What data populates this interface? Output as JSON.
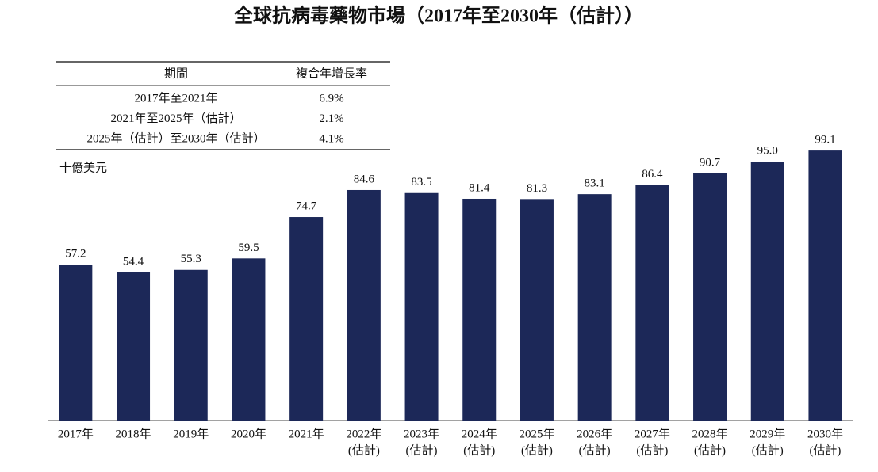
{
  "chart_data": {
    "type": "bar",
    "title": "全球抗病毒藥物市場（2017年至2030年（估計））",
    "y_label": "十億美元",
    "categories": [
      "2017年",
      "2018年",
      "2019年",
      "2020年",
      "2021年",
      "2022年",
      "2023年",
      "2024年",
      "2025年",
      "2026年",
      "2027年",
      "2028年",
      "2029年",
      "2030年"
    ],
    "x_sublabels": [
      null,
      null,
      null,
      null,
      null,
      "(估計)",
      "(估計)",
      "(估計)",
      "(估計)",
      "(估計)",
      "(估計)",
      "(估計)",
      "(估計)",
      "(估計)"
    ],
    "values": [
      57.2,
      54.4,
      55.3,
      59.5,
      74.7,
      84.6,
      83.5,
      81.4,
      81.3,
      83.1,
      86.4,
      90.7,
      95.0,
      99.1
    ],
    "value_labels": [
      "57.2",
      "54.4",
      "55.3",
      "59.5",
      "74.7",
      "84.6",
      "83.5",
      "81.4",
      "81.3",
      "83.1",
      "86.4",
      "90.7",
      "95.0",
      "99.1"
    ],
    "color": "#1c2858",
    "ylim": [
      0,
      100
    ]
  },
  "table": {
    "header": [
      "期間",
      "複合年增長率"
    ],
    "rows": [
      [
        "2017年至2021年",
        "6.9%"
      ],
      [
        "2021年至2025年（估計）",
        "2.1%"
      ],
      [
        "2025年（估計）至2030年（估計）",
        "4.1%"
      ]
    ]
  }
}
